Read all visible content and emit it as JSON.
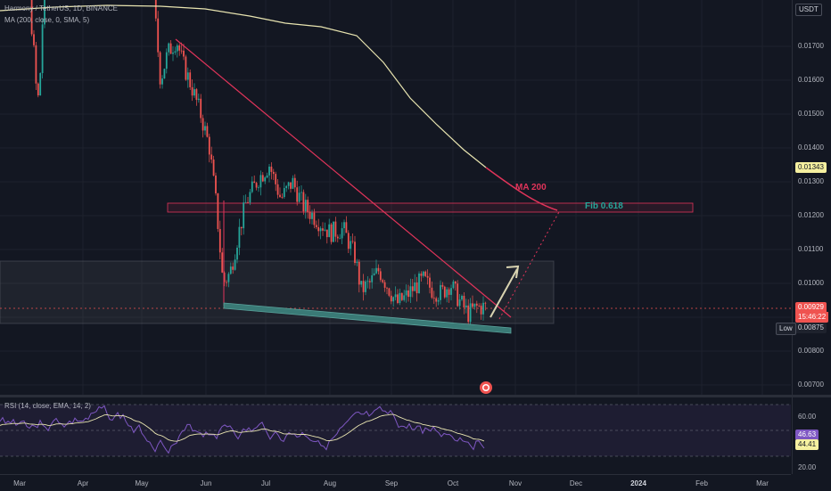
{
  "legend": {
    "symbol": "Harmony / TetherUS, 1D, BINANCE",
    "ma": "MA (200, close, 0, SMA, 5)",
    "rsi": "RSI (14, close, EMA, 14, 2)"
  },
  "currency": "USDT",
  "price_ticks": [
    "0.01700",
    "0.01600",
    "0.01500",
    "0.01400",
    "0.01300",
    "0.01200",
    "0.01100",
    "0.01000",
    "0.00800",
    "0.00700"
  ],
  "rsi_ticks": [
    "60.00",
    "20.00"
  ],
  "time_labels": [
    "Mar",
    "Apr",
    "May",
    "Jun",
    "Jul",
    "Aug",
    "Sep",
    "Oct",
    "Nov",
    "Dec",
    "2024",
    "Feb",
    "Mar"
  ],
  "badges": {
    "ma_value": "0.01343",
    "last_price": "0.00929",
    "countdown": "15:46:22",
    "low_label": "Low",
    "low_value": "0.00875",
    "rsi_value": "46.63",
    "rsi_ma_value": "44.41"
  },
  "annotations": {
    "ma200": "MA 200",
    "fib": "Fib 0.618"
  },
  "colors": {
    "up": "#26a69a",
    "down": "#ef5350",
    "ma": "#e8e4b0",
    "trendline": "#e0345a",
    "support": "#3a7a76",
    "rsi": "#7e57c2",
    "arrow": "#d8d3b0"
  },
  "icons": {
    "event": "earnings-icon"
  }
}
